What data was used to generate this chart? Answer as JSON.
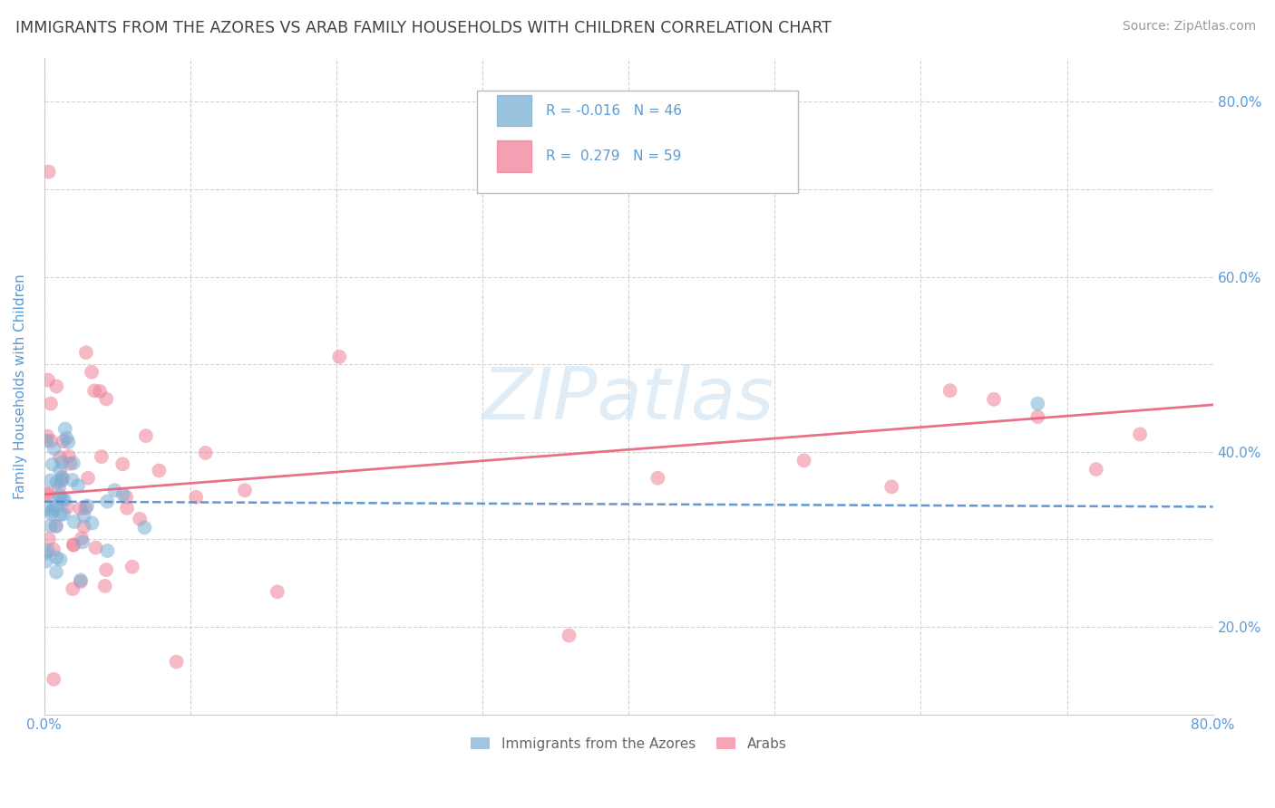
{
  "title": "IMMIGRANTS FROM THE AZORES VS ARAB FAMILY HOUSEHOLDS WITH CHILDREN CORRELATION CHART",
  "source": "Source: ZipAtlas.com",
  "ylabel": "Family Households with Children",
  "xlim": [
    0.0,
    0.8
  ],
  "ylim": [
    0.1,
    0.85
  ],
  "azores_color": "#7bafd4",
  "arab_color": "#f08098",
  "azores_line_color": "#4a86c8",
  "arab_line_color": "#e8607a",
  "background_color": "#ffffff",
  "grid_color": "#c8c8c8",
  "title_color": "#404040",
  "axis_label_color": "#5b9bd5",
  "tick_label_color": "#5b9bd5",
  "watermark_color": "#c8dff0",
  "r_azores": -0.016,
  "n_azores": 46,
  "r_arab": 0.279,
  "n_arab": 59
}
